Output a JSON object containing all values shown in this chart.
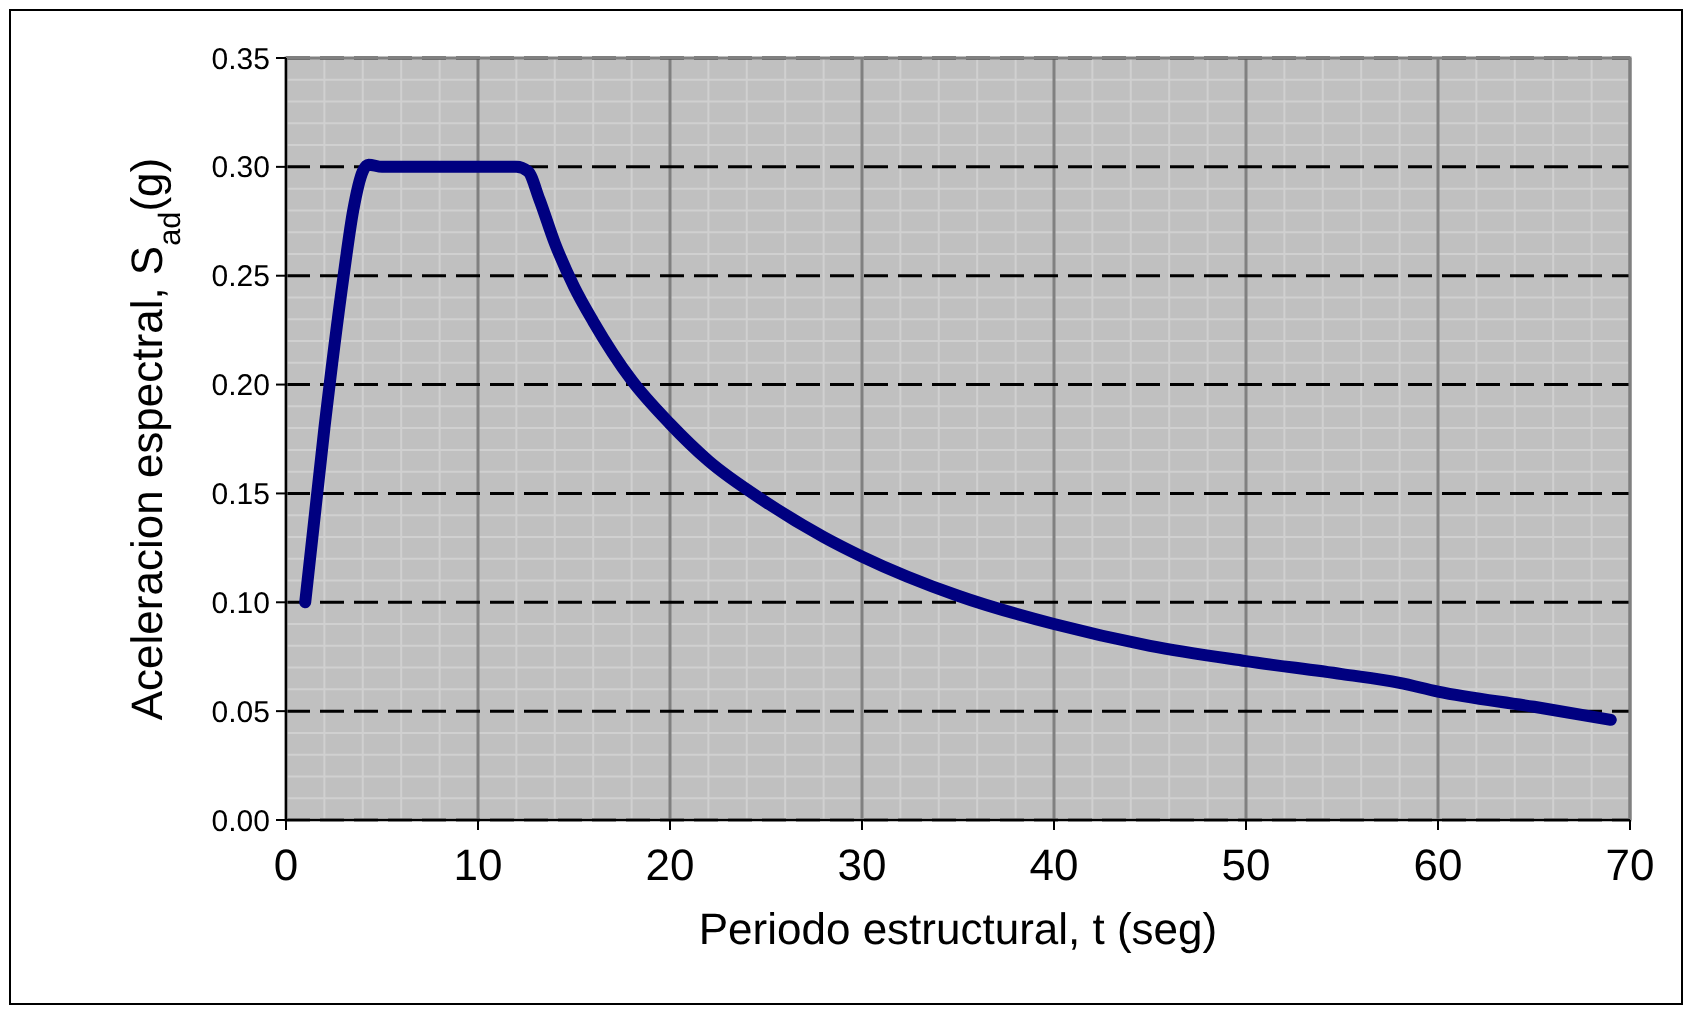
{
  "chart_data": {
    "type": "line",
    "xlabel": "Periodo estructural, t (seg)",
    "ylabel": "Aceleracion espectral, S$_{ad}$(g)",
    "x": [
      1,
      2,
      3,
      3.5,
      4,
      4.3,
      5,
      8,
      12,
      12.6,
      13.2,
      14,
      15,
      16,
      18,
      20,
      22,
      25,
      28,
      30,
      35,
      40,
      45,
      50,
      55,
      58,
      60,
      65,
      69
    ],
    "series": [
      {
        "color": "#000080",
        "values": [
          0.1,
          0.18,
          0.25,
          0.28,
          0.298,
          0.301,
          0.3,
          0.3,
          0.3,
          0.298,
          0.285,
          0.265,
          0.245,
          0.229,
          0.202,
          0.182,
          0.165,
          0.146,
          0.13,
          0.121,
          0.103,
          0.09,
          0.08,
          0.073,
          0.067,
          0.063,
          0.059,
          0.052,
          0.046
        ]
      }
    ],
    "xlim": [
      0,
      70
    ],
    "xticks": [
      0,
      10,
      20,
      30,
      40,
      50,
      60,
      70
    ],
    "ylim": [
      0,
      0.35
    ],
    "yticks": [
      {
        "value": 0,
        "label": "0.00"
      },
      {
        "value": 0.05,
        "label": "0.05"
      },
      {
        "value": 0.1,
        "label": "0.10"
      },
      {
        "value": 0.15,
        "label": "0.15"
      },
      {
        "value": 0.2,
        "label": "0.20"
      },
      {
        "value": 0.25,
        "label": "0.25"
      },
      {
        "value": 0.3,
        "label": "0.30"
      },
      {
        "value": 0.35,
        "label": "0.35"
      }
    ],
    "grid": true,
    "marker": "none",
    "line_style": "solid"
  }
}
